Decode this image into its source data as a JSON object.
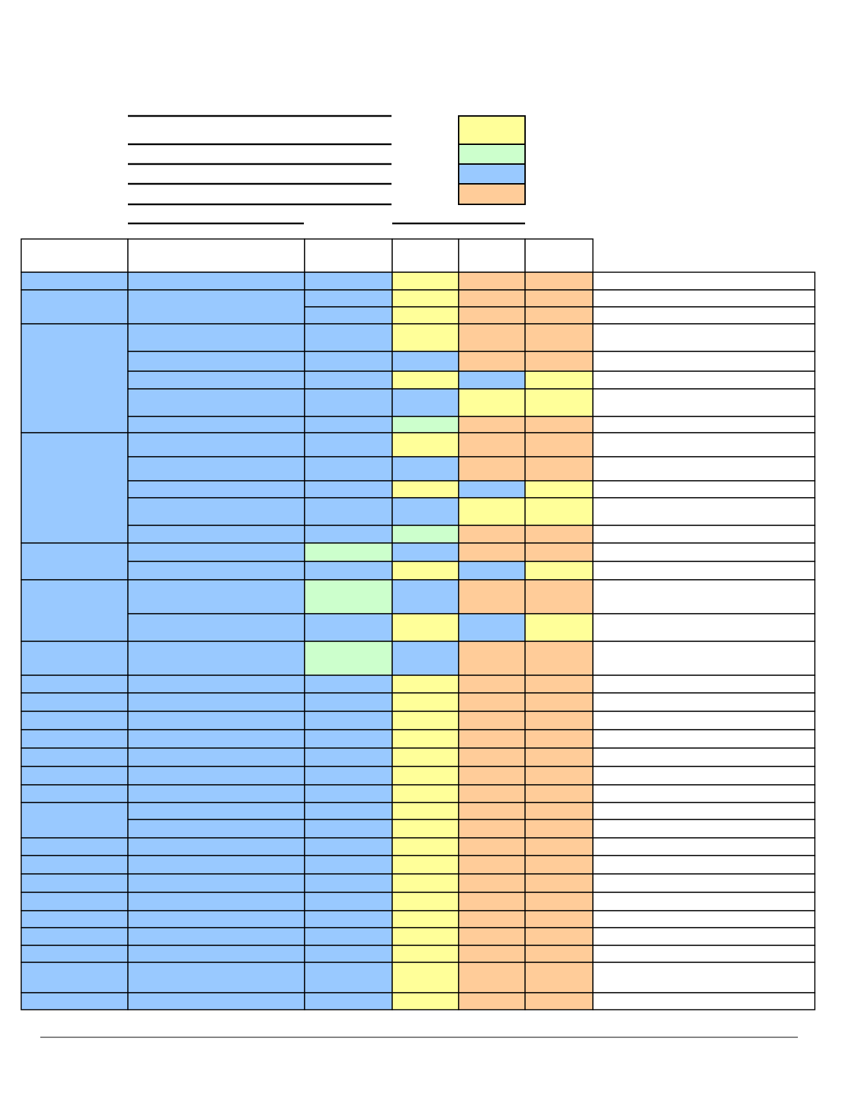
{
  "legend": {
    "colors": [
      "#ffff99",
      "#ccffcc",
      "#99c9ff",
      "#ffcc99"
    ]
  },
  "table": {
    "rows": [
      [
        "#99c9ff",
        "#ffff99",
        "#ffcc99",
        "#ffcc99"
      ],
      [
        "#99c9ff",
        "#ffff99",
        "#ffcc99",
        "#ffcc99"
      ],
      [
        "#99c9ff",
        "#ffff99",
        "#ffcc99",
        "#ffcc99"
      ],
      [
        "#99c9ff",
        "#ffff99",
        "#ffcc99",
        "#ffcc99"
      ],
      [
        "#99c9ff",
        "#99c9ff",
        "#ffcc99",
        "#ffcc99"
      ],
      [
        "#99c9ff",
        "#ffff99",
        "#99c9ff",
        "#ffff99"
      ],
      [
        "#99c9ff",
        "#99c9ff",
        "#ffff99",
        "#ffff99"
      ],
      [
        "#99c9ff",
        "#ccffcc",
        "#ffcc99",
        "#ffcc99"
      ],
      [
        "#99c9ff",
        "#ffff99",
        "#ffcc99",
        "#ffcc99"
      ],
      [
        "#99c9ff",
        "#99c9ff",
        "#ffcc99",
        "#ffcc99"
      ],
      [
        "#99c9ff",
        "#ffff99",
        "#99c9ff",
        "#ffff99"
      ],
      [
        "#99c9ff",
        "#99c9ff",
        "#ffff99",
        "#ffff99"
      ],
      [
        "#99c9ff",
        "#ccffcc",
        "#ffcc99",
        "#ffcc99"
      ],
      [
        "#ccffcc",
        "#99c9ff",
        "#ffcc99",
        "#ffcc99"
      ],
      [
        "#99c9ff",
        "#ffff99",
        "#99c9ff",
        "#ffff99"
      ],
      [
        "#ccffcc",
        "#99c9ff",
        "#ffcc99",
        "#ffcc99"
      ],
      [
        "#99c9ff",
        "#ffff99",
        "#99c9ff",
        "#ffff99"
      ],
      [
        "#ccffcc",
        "#99c9ff",
        "#ffcc99",
        "#ffcc99"
      ],
      [
        "#99c9ff",
        "#ffff99",
        "#ffcc99",
        "#ffcc99"
      ],
      [
        "#99c9ff",
        "#ffff99",
        "#ffcc99",
        "#ffcc99"
      ],
      [
        "#99c9ff",
        "#ffff99",
        "#ffcc99",
        "#ffcc99"
      ],
      [
        "#99c9ff",
        "#ffff99",
        "#ffcc99",
        "#ffcc99"
      ],
      [
        "#99c9ff",
        "#ffff99",
        "#ffcc99",
        "#ffcc99"
      ],
      [
        "#99c9ff",
        "#ffff99",
        "#ffcc99",
        "#ffcc99"
      ],
      [
        "#99c9ff",
        "#ffff99",
        "#ffcc99",
        "#ffcc99"
      ],
      [
        "#99c9ff",
        "#ffff99",
        "#ffcc99",
        "#ffcc99"
      ],
      [
        "#99c9ff",
        "#ffff99",
        "#ffcc99",
        "#ffcc99"
      ],
      [
        "#99c9ff",
        "#ffff99",
        "#ffcc99",
        "#ffcc99"
      ],
      [
        "#99c9ff",
        "#ffff99",
        "#ffcc99",
        "#ffcc99"
      ],
      [
        "#99c9ff",
        "#ffff99",
        "#ffcc99",
        "#ffcc99"
      ],
      [
        "#99c9ff",
        "#ffff99",
        "#ffcc99",
        "#ffcc99"
      ],
      [
        "#99c9ff",
        "#ffff99",
        "#ffcc99",
        "#ffcc99"
      ],
      [
        "#99c9ff",
        "#ffff99",
        "#ffcc99",
        "#ffcc99"
      ],
      [
        "#99c9ff",
        "#ffff99",
        "#ffcc99",
        "#ffcc99"
      ],
      [
        "#99c9ff",
        "#ffff99",
        "#ffcc99",
        "#ffcc99"
      ],
      [
        "#99c9ff",
        "#ffff99",
        "#ffcc99",
        "#ffcc99"
      ]
    ]
  }
}
